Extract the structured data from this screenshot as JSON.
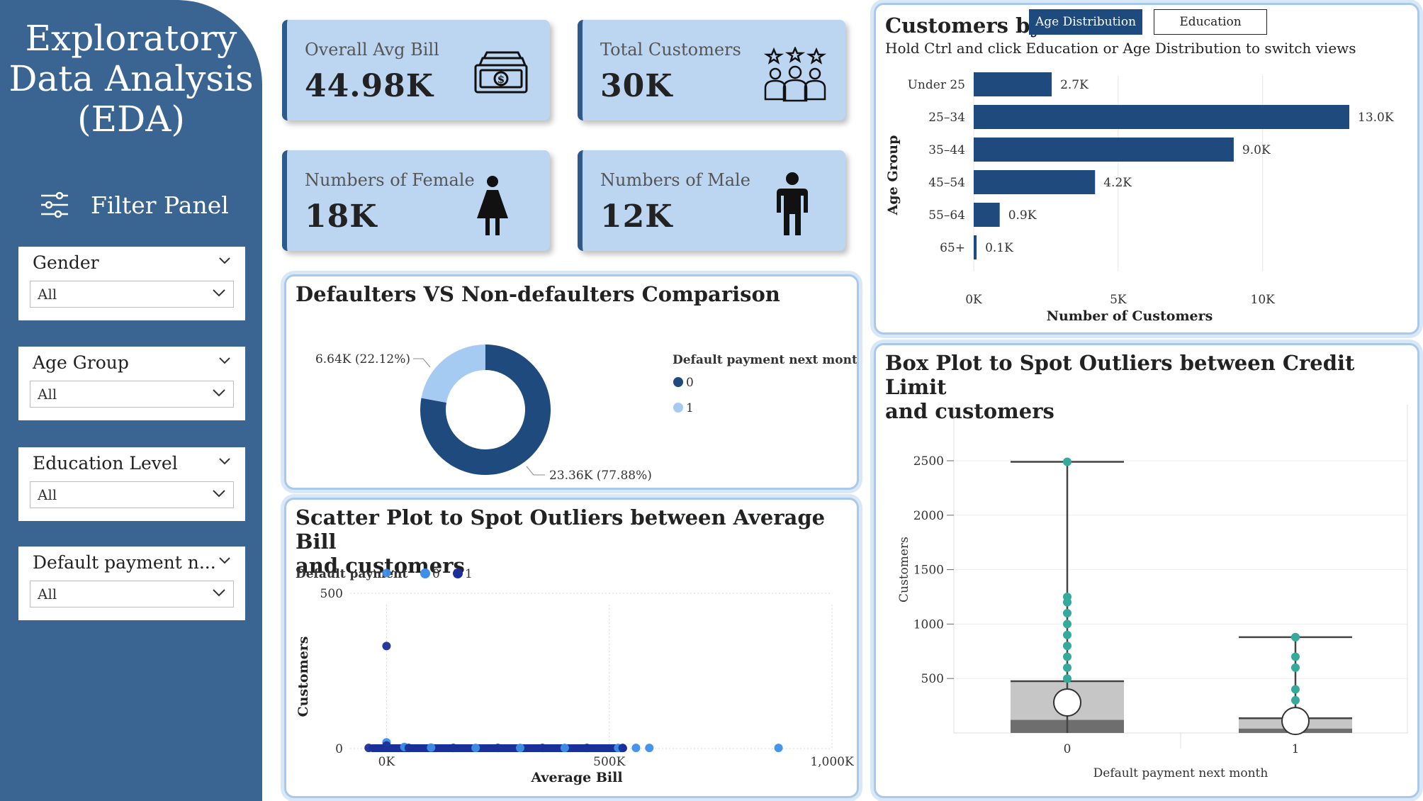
{
  "sidebar": {
    "title_lines": [
      "Exploratory",
      "Data Analysis",
      "(EDA)"
    ],
    "filter_header": "Filter Panel",
    "filters": [
      {
        "label": "Gender",
        "value": "All"
      },
      {
        "label": "Age Group",
        "value": "All"
      },
      {
        "label": "Education Level",
        "value": "All"
      },
      {
        "label": "Default payment n...",
        "value": "All"
      }
    ]
  },
  "kpis": [
    {
      "title": "Overall Avg Bill",
      "value": "44.98K",
      "icon": "money-icon"
    },
    {
      "title": "Total Customers",
      "value": "30K",
      "icon": "customers-icon"
    },
    {
      "title": "Numbers of Female",
      "value": "18K",
      "icon": "female-icon"
    },
    {
      "title": "Numbers of Male",
      "value": "12K",
      "icon": "male-icon"
    }
  ],
  "age_panel": {
    "title": "Customers by",
    "toggle_active": "Age Distribution",
    "toggle_inactive": "Education",
    "hint": "Hold Ctrl and click Education or Age Distribution to switch views"
  },
  "donut_panel": {
    "title": "Defaulters VS Non-defaulters Comparison"
  },
  "scatter_panel": {
    "title_lines": [
      "Scatter Plot to Spot Outliers between Average Bill",
      "and customers"
    ]
  },
  "box_panel": {
    "title_lines": [
      "Box Plot to Spot Outliers between Credit Limit",
      "and customers"
    ]
  },
  "colors": {
    "sidebar": "#3a6592",
    "kpi_bg": "#bcd6f1",
    "navy": "#1f4a7e",
    "light_blue": "#a6cbf2",
    "scatter_0": "#3d8fe8",
    "scatter_1": "#1a2f99",
    "teal": "#35a99b"
  },
  "chart_data": [
    {
      "type": "bar",
      "orientation": "horizontal",
      "categories": [
        "Under 25",
        "25–34",
        "35–44",
        "45–54",
        "55–64",
        "65+"
      ],
      "values": [
        2700,
        13000,
        9000,
        4200,
        900,
        100
      ],
      "data_labels": [
        "2.7K",
        "13.0K",
        "9.0K",
        "4.2K",
        "0.9K",
        "0.1K"
      ],
      "xlabel": "Number of Customers",
      "ylabel": "Age Group",
      "xticks": [
        "0K",
        "5K",
        "10K"
      ],
      "xlim": [
        0,
        13000
      ]
    },
    {
      "type": "pie",
      "donut": true,
      "legend_title": "Default payment next month",
      "legend": [
        "0",
        "1"
      ],
      "values": [
        23360,
        6640
      ],
      "percents": [
        77.88,
        22.12
      ],
      "data_labels": [
        "23.36K (77.88%)",
        "6.64K (22.12%)"
      ]
    },
    {
      "type": "scatter",
      "legend_title": "Default payment",
      "legend": [
        "0",
        "1"
      ],
      "xlabel": "Average Bill",
      "ylabel": "Customers",
      "xticks": [
        "0K",
        "500K",
        "1,000K"
      ],
      "yticks": [
        "0",
        "500"
      ],
      "xlim": [
        -50000,
        1000000
      ],
      "ylim": [
        0,
        600
      ],
      "series": [
        {
          "name": "0",
          "points": [
            [
              0,
              565
            ],
            [
              0,
              20
            ],
            [
              40000,
              5
            ],
            [
              100000,
              3
            ],
            [
              200000,
              2
            ],
            [
              300000,
              2
            ],
            [
              400000,
              2
            ],
            [
              520000,
              2
            ],
            [
              560000,
              2
            ],
            [
              590000,
              2
            ],
            [
              880000,
              2
            ]
          ]
        },
        {
          "name": "1",
          "points": [
            [
              0,
              330
            ],
            [
              0,
              10
            ],
            [
              -40000,
              2
            ],
            [
              50000,
              2
            ],
            [
              150000,
              2
            ],
            [
              250000,
              2
            ],
            [
              350000,
              2
            ],
            [
              450000,
              2
            ],
            [
              530000,
              2
            ]
          ]
        }
      ]
    },
    {
      "type": "box",
      "xlabel": "Default payment next month",
      "ylabel": "Customers",
      "categories": [
        "0",
        "1"
      ],
      "yticks": [
        500,
        1000,
        1500,
        2000,
        2500
      ],
      "ylim": [
        0,
        2500
      ],
      "boxes": [
        {
          "category": "0",
          "min": 0,
          "q1": 120,
          "median": 280,
          "q3": 475,
          "max": 2490,
          "outliers": [
            1250,
            1200,
            1100,
            1000,
            900,
            800,
            700,
            600,
            500
          ]
        },
        {
          "category": "1",
          "min": 0,
          "q1": 40,
          "median": 110,
          "q3": 135,
          "max": 880,
          "outliers": [
            880,
            700,
            600,
            400,
            300
          ]
        }
      ]
    }
  ]
}
